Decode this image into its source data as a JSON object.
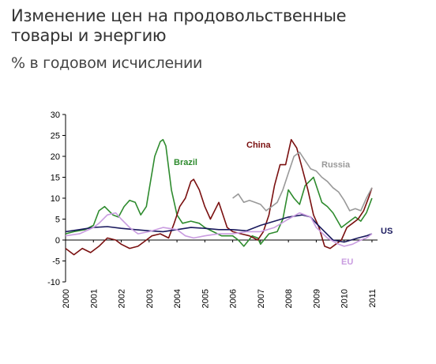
{
  "header": {
    "title": "Изменение цен на продовольственные товары и энергию",
    "subtitle": "% в годовом исчислении"
  },
  "chart_data": {
    "type": "line",
    "title": "Изменение цен на продовольственные товары и энергию",
    "subtitle": "% в годовом исчислении",
    "xlabel": "",
    "ylabel": "",
    "xlim": [
      2000,
      2011.2
    ],
    "ylim": [
      -10,
      30
    ],
    "yticks": [
      -10,
      -5,
      0,
      5,
      10,
      15,
      20,
      25,
      30
    ],
    "xticks": [
      "2000",
      "2001",
      "2002",
      "2003",
      "2004",
      "2005",
      "2006",
      "2007",
      "2008",
      "2009",
      "2010",
      "2011"
    ],
    "grid": false,
    "legend": "labels-on-lines",
    "series": [
      {
        "name": "Brazil",
        "color": "#2e8b2e",
        "x": [
          2000.0,
          2000.3,
          2000.7,
          2001.0,
          2001.2,
          2001.4,
          2001.7,
          2001.9,
          2002.1,
          2002.3,
          2002.5,
          2002.7,
          2002.9,
          2003.0,
          2003.2,
          2003.4,
          2003.5,
          2003.6,
          2003.8,
          2004.0,
          2004.2,
          2004.5,
          2004.8,
          2005.0,
          2005.3,
          2005.6,
          2006.0,
          2006.2,
          2006.4,
          2006.7,
          2006.9,
          2007.0,
          2007.3,
          2007.6,
          2007.8,
          2008.0,
          2008.2,
          2008.4,
          2008.6,
          2008.9,
          2009.2,
          2009.4,
          2009.6,
          2009.9,
          2010.2,
          2010.4,
          2010.6,
          2010.8,
          2011.0
        ],
        "y": [
          1.5,
          2.0,
          2.5,
          3.5,
          7.0,
          8.0,
          6.0,
          5.5,
          8.0,
          9.5,
          9.0,
          6.0,
          8.0,
          12.0,
          20.0,
          23.5,
          24.0,
          22.5,
          12.0,
          6.0,
          4.0,
          4.5,
          4.0,
          3.0,
          2.0,
          1.0,
          1.0,
          0.0,
          -1.5,
          1.0,
          0.5,
          -1.0,
          1.5,
          2.0,
          5.0,
          12.0,
          10.0,
          8.5,
          13.0,
          15.0,
          9.0,
          8.0,
          6.5,
          3.0,
          4.5,
          5.5,
          4.5,
          6.5,
          10.0
        ]
      },
      {
        "name": "China",
        "color": "#7a1010",
        "x": [
          2000.0,
          2000.3,
          2000.6,
          2000.9,
          2001.2,
          2001.5,
          2001.8,
          2002.0,
          2002.3,
          2002.6,
          2002.9,
          2003.1,
          2003.4,
          2003.7,
          2003.9,
          2004.1,
          2004.3,
          2004.5,
          2004.6,
          2004.8,
          2005.0,
          2005.2,
          2005.5,
          2005.8,
          2006.0,
          2006.3,
          2006.6,
          2006.9,
          2007.1,
          2007.3,
          2007.5,
          2007.7,
          2007.9,
          2008.1,
          2008.3,
          2008.5,
          2008.7,
          2008.9,
          2009.1,
          2009.3,
          2009.5,
          2009.7,
          2009.9,
          2010.1,
          2010.3,
          2010.5,
          2010.7,
          2010.9,
          2011.0
        ],
        "y": [
          -2.0,
          -3.5,
          -2.0,
          -3.0,
          -1.5,
          0.5,
          0.0,
          -1.0,
          -2.0,
          -1.5,
          0.0,
          1.0,
          1.5,
          0.5,
          4.0,
          8.0,
          10.0,
          14.0,
          14.5,
          12.0,
          8.0,
          5.0,
          9.0,
          3.0,
          2.0,
          1.5,
          1.0,
          0.0,
          2.0,
          6.0,
          13.0,
          18.0,
          18.0,
          24.0,
          22.0,
          17.0,
          12.0,
          6.0,
          3.0,
          -1.5,
          -2.0,
          -1.0,
          0.0,
          3.0,
          4.0,
          5.0,
          7.0,
          10.5,
          12.5
        ]
      },
      {
        "name": "Russia",
        "color": "#999999",
        "x": [
          2006.0,
          2006.2,
          2006.4,
          2006.6,
          2006.8,
          2007.0,
          2007.2,
          2007.4,
          2007.6,
          2007.8,
          2008.0,
          2008.2,
          2008.4,
          2008.6,
          2008.8,
          2009.0,
          2009.2,
          2009.4,
          2009.6,
          2009.8,
          2010.0,
          2010.2,
          2010.4,
          2010.6,
          2010.8,
          2011.0
        ],
        "y": [
          10.0,
          11.0,
          9.0,
          9.5,
          9.0,
          8.5,
          7.0,
          8.0,
          9.0,
          12.0,
          16.0,
          20.0,
          21.0,
          19.0,
          17.0,
          16.5,
          15.0,
          14.0,
          12.5,
          11.5,
          9.5,
          7.0,
          7.5,
          7.0,
          10.0,
          12.5
        ]
      },
      {
        "name": "US",
        "color": "#1a1a5e",
        "x": [
          2000.0,
          2000.5,
          2001.0,
          2001.5,
          2002.0,
          2002.5,
          2003.0,
          2003.5,
          2004.0,
          2004.5,
          2005.0,
          2005.5,
          2006.0,
          2006.5,
          2007.0,
          2007.5,
          2008.0,
          2008.5,
          2008.8,
          2009.0,
          2009.3,
          2009.6,
          2010.0,
          2010.5,
          2010.8,
          2011.0
        ],
        "y": [
          2.0,
          2.5,
          3.0,
          3.2,
          2.8,
          2.5,
          2.2,
          2.0,
          2.5,
          3.0,
          2.8,
          2.5,
          2.5,
          2.2,
          3.5,
          4.5,
          5.5,
          6.0,
          5.5,
          4.0,
          2.0,
          0.0,
          -0.5,
          0.5,
          1.0,
          1.5
        ]
      },
      {
        "name": "EU",
        "color": "#c99ce0",
        "x": [
          2000.0,
          2000.5,
          2001.0,
          2001.2,
          2001.5,
          2001.8,
          2002.0,
          2002.3,
          2002.6,
          2003.0,
          2003.5,
          2004.0,
          2004.3,
          2004.6,
          2005.0,
          2005.5,
          2006.0,
          2006.5,
          2007.0,
          2007.5,
          2008.0,
          2008.4,
          2008.8,
          2009.0,
          2009.4,
          2009.8,
          2010.0,
          2010.3,
          2010.6,
          2010.8,
          2011.0
        ],
        "y": [
          1.0,
          1.5,
          3.0,
          4.0,
          6.0,
          6.5,
          5.0,
          3.0,
          1.5,
          2.0,
          3.0,
          2.5,
          1.0,
          0.5,
          1.0,
          1.5,
          1.5,
          2.0,
          2.0,
          3.0,
          5.0,
          6.5,
          5.5,
          3.0,
          0.5,
          -1.0,
          -1.5,
          -1.0,
          0.0,
          0.5,
          1.5
        ]
      }
    ]
  }
}
